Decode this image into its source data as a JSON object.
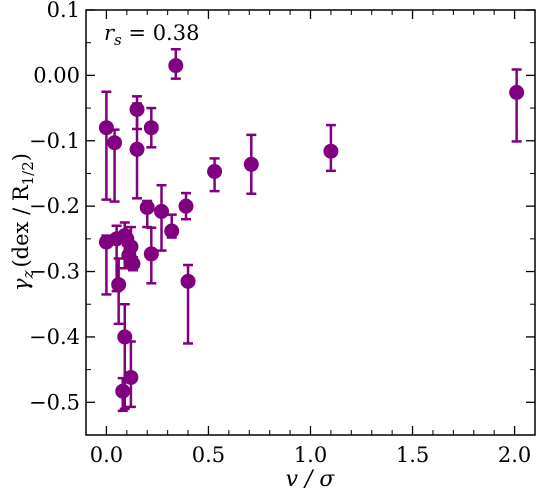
{
  "chart_data": {
    "type": "scatter",
    "annotation": "r_s = 0.38",
    "annotation_parts": {
      "var": "r",
      "sub": "s",
      "rest": " = 0.38"
    },
    "xlabel": "v / σ",
    "ylabel": "γ_z (dex / R_1/2)",
    "ylabel_parts": {
      "var": "γ",
      "sub": "z",
      "mid": "(dex / R",
      "sub2": "1/2",
      "end": ")"
    },
    "xlim": [
      -0.1,
      2.1
    ],
    "ylim": [
      -0.55,
      0.1
    ],
    "xticks": [
      0.0,
      0.5,
      1.0,
      1.5,
      2.0
    ],
    "xtick_labels": [
      "0.0",
      "0.5",
      "1.0",
      "1.5",
      "2.0"
    ],
    "yticks": [
      0.1,
      0.0,
      -0.1,
      -0.2,
      -0.3,
      -0.4,
      -0.5
    ],
    "ytick_labels": [
      "0.1",
      "0.00",
      "−0.1",
      "−0.2",
      "−0.3",
      "−0.4",
      "−0.5"
    ],
    "color": "#800080",
    "points": [
      {
        "x": 0.0,
        "y": -0.08,
        "err_lo": 0.11,
        "err_hi": 0.055
      },
      {
        "x": 0.0,
        "y": -0.255,
        "err_lo": 0.08,
        "err_hi": 0.01
      },
      {
        "x": 0.04,
        "y": -0.103,
        "err_lo": 0.09,
        "err_hi": 0.02
      },
      {
        "x": 0.05,
        "y": -0.25,
        "err_lo": 0.08,
        "err_hi": 0.02
      },
      {
        "x": 0.06,
        "y": -0.32,
        "err_lo": 0.06,
        "err_hi": 0.04
      },
      {
        "x": 0.08,
        "y": -0.483,
        "err_lo": 0.03,
        "err_hi": 0.02
      },
      {
        "x": 0.09,
        "y": -0.245,
        "err_lo": 0.05,
        "err_hi": 0.02
      },
      {
        "x": 0.09,
        "y": -0.4,
        "err_lo": 0.11,
        "err_hi": 0.05
      },
      {
        "x": 0.1,
        "y": -0.25,
        "err_lo": 0.01,
        "err_hi": 0.01
      },
      {
        "x": 0.11,
        "y": -0.275,
        "err_lo": 0.01,
        "err_hi": 0.02
      },
      {
        "x": 0.12,
        "y": -0.262,
        "err_lo": 0.03,
        "err_hi": 0.03
      },
      {
        "x": 0.12,
        "y": -0.462,
        "err_lo": 0.045,
        "err_hi": 0.055
      },
      {
        "x": 0.13,
        "y": -0.288,
        "err_lo": 0.01,
        "err_hi": 0.01
      },
      {
        "x": 0.15,
        "y": -0.052,
        "err_lo": 0.03,
        "err_hi": 0.02
      },
      {
        "x": 0.15,
        "y": -0.113,
        "err_lo": 0.075,
        "err_hi": 0.07
      },
      {
        "x": 0.2,
        "y": -0.202,
        "err_lo": 0.03,
        "err_hi": 0.01
      },
      {
        "x": 0.22,
        "y": -0.08,
        "err_lo": 0.03,
        "err_hi": 0.03
      },
      {
        "x": 0.22,
        "y": -0.273,
        "err_lo": 0.045,
        "err_hi": 0.04
      },
      {
        "x": 0.27,
        "y": -0.208,
        "err_lo": 0.06,
        "err_hi": 0.04
      },
      {
        "x": 0.32,
        "y": -0.238,
        "err_lo": 0.01,
        "err_hi": 0.025
      },
      {
        "x": 0.34,
        "y": 0.015,
        "err_lo": 0.02,
        "err_hi": 0.025
      },
      {
        "x": 0.39,
        "y": -0.2,
        "err_lo": 0.02,
        "err_hi": 0.02
      },
      {
        "x": 0.4,
        "y": -0.315,
        "err_lo": 0.095,
        "err_hi": 0.025
      },
      {
        "x": 0.53,
        "y": -0.147,
        "err_lo": 0.03,
        "err_hi": 0.02
      },
      {
        "x": 0.71,
        "y": -0.136,
        "err_lo": 0.045,
        "err_hi": 0.045
      },
      {
        "x": 1.1,
        "y": -0.116,
        "err_lo": 0.03,
        "err_hi": 0.04
      },
      {
        "x": 2.01,
        "y": -0.026,
        "err_lo": 0.075,
        "err_hi": 0.035
      }
    ]
  }
}
